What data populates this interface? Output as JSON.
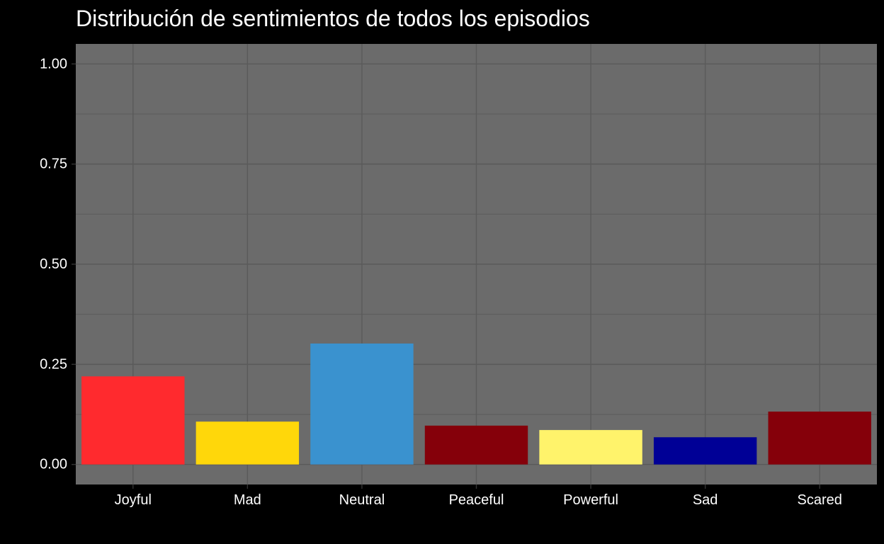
{
  "chart_data": {
    "type": "bar",
    "title": "Distribución de sentimientos de todos los episodios",
    "xlabel": "",
    "ylabel": "",
    "categories": [
      "Joyful",
      "Mad",
      "Neutral",
      "Peaceful",
      "Powerful",
      "Sad",
      "Scared"
    ],
    "values": [
      0.22,
      0.107,
      0.302,
      0.097,
      0.086,
      0.068,
      0.132
    ],
    "colors": [
      "#ff2a2e",
      "#ffd70a",
      "#3a92cf",
      "#85000a",
      "#fff36b",
      "#000096",
      "#85000a"
    ],
    "ylim": [
      -0.05,
      1.05
    ],
    "y_ticks": [
      {
        "value": 0.0,
        "label": "0.00"
      },
      {
        "value": 0.25,
        "label": "0.25"
      },
      {
        "value": 0.5,
        "label": "0.50"
      },
      {
        "value": 0.75,
        "label": "0.75"
      },
      {
        "value": 1.0,
        "label": "1.00"
      }
    ],
    "y_minor_ticks": [
      0.125,
      0.375,
      0.625,
      0.875
    ],
    "grid": true,
    "legend": "none",
    "background": "#000000",
    "panel_background": "#6b6b6b",
    "grid_color": "#5a5a5a",
    "text_color": "#ffffff"
  }
}
